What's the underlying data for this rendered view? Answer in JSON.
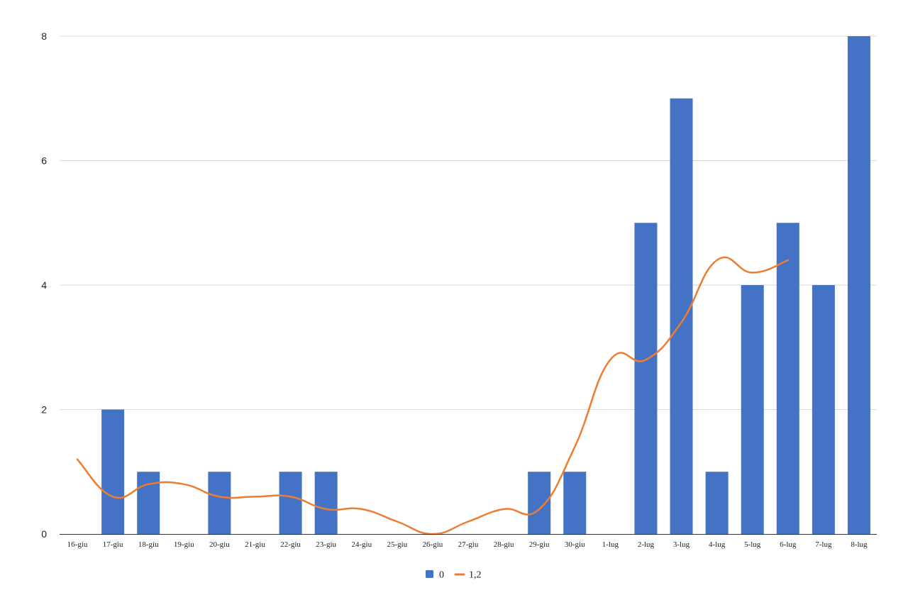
{
  "chart_data": {
    "type": "bar",
    "categories": [
      "16-giu",
      "17-giu",
      "18-giu",
      "19-giu",
      "20-giu",
      "21-giu",
      "22-giu",
      "23-giu",
      "24-giu",
      "25-giu",
      "26-giu",
      "27-giu",
      "28-giu",
      "29-giu",
      "30-giu",
      "1-lug",
      "2-lug",
      "3-lug",
      "4-lug",
      "5-lug",
      "6-lug",
      "7-lug",
      "8-lug"
    ],
    "series": [
      {
        "name": "0",
        "type": "bar",
        "color": "#4472c4",
        "values": [
          0,
          2,
          1,
          0,
          1,
          0,
          1,
          1,
          0,
          0,
          0,
          0,
          0,
          1,
          1,
          0,
          5,
          7,
          1,
          4,
          5,
          4,
          8
        ]
      },
      {
        "name": "1,2",
        "type": "line",
        "smooth": true,
        "color": "#ed7d31",
        "values": [
          1.2,
          0.6,
          0.8,
          0.8,
          0.6,
          0.6,
          0.6,
          0.4,
          0.4,
          0.2,
          0.0,
          0.2,
          0.4,
          0.4,
          1.4,
          2.8,
          2.8,
          3.4,
          4.4,
          4.2,
          4.4,
          null,
          null
        ]
      }
    ],
    "yticks": [
      0,
      2,
      4,
      6,
      8
    ],
    "ylim": [
      0,
      8
    ],
    "grid": true,
    "legend_position": "bottom"
  }
}
